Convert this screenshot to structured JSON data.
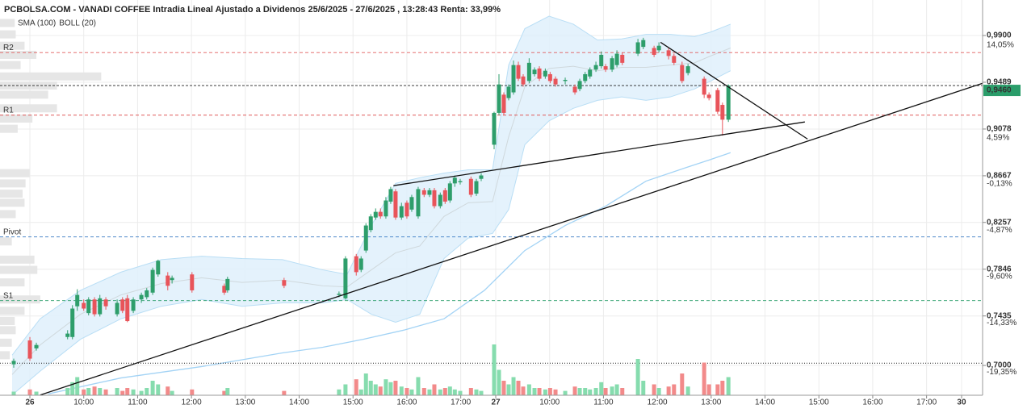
{
  "chart_data": {
    "type": "candlestick",
    "title": "PCBOLSA.COM - VANADI COFFEE Intradia Lineal Ajustado a Dividenos 25/6/2025 - 27/6/2025 , 13:28:43 Renta: 33,99%",
    "legend": [
      {
        "name": "SMA (100)",
        "color": "#8ecbf0"
      },
      {
        "name": "BOLL (20)",
        "color": "#bbbbbb"
      }
    ],
    "up_color": "#2e9e6b",
    "down_color": "#e8545a",
    "volume_up_color": "#86dcae",
    "volume_down_color": "#f28a8a",
    "x": [
      -0.3,
      0,
      0.12,
      0.7,
      0.79,
      0.88,
      1.0,
      1.09,
      1.2,
      1.3,
      1.41,
      1.62,
      1.72,
      1.81,
      1.92,
      2.07,
      2.17,
      2.28,
      2.38,
      2.56,
      2.64,
      3.01,
      3.61,
      3.67,
      4.72,
      5.74,
      5.86,
      6.06,
      6.15,
      6.24,
      6.33,
      6.42,
      6.51,
      6.61,
      6.7,
      6.79,
      6.9,
      7.0,
      7.09,
      7.21,
      7.32,
      7.42,
      7.51,
      7.62,
      7.71,
      7.8,
      7.89,
      7.99,
      8.19,
      8.29,
      8.38,
      8.62,
      8.71,
      8.8,
      8.89,
      8.98,
      9.07,
      9.16,
      9.27,
      9.37,
      9.46,
      9.57,
      9.66,
      9.76,
      9.94,
      10.12,
      10.21,
      10.31,
      10.4,
      10.51,
      10.61,
      10.69,
      10.81,
      10.9,
      11.0,
      11.29,
      11.39,
      11.59,
      11.68,
      11.86,
      11.96,
      12.11,
      12.22,
      12.52,
      12.61,
      12.77,
      12.86,
      12.97
    ],
    "open": [
      0.701,
      0.722,
      0.715,
      0.725,
      0.725,
      0.752,
      0.755,
      0.746,
      0.758,
      0.745,
      0.758,
      0.745,
      0.758,
      0.759,
      0.748,
      0.758,
      0.76,
      0.764,
      0.78,
      0.779,
      0.775,
      0.78,
      0.77,
      0.766,
      0.775,
      0.762,
      0.759,
      0.796,
      0.784,
      0.801,
      0.819,
      0.83,
      0.835,
      0.831,
      0.844,
      0.853,
      0.83,
      0.843,
      0.837,
      0.831,
      0.854,
      0.85,
      0.854,
      0.84,
      0.854,
      0.845,
      0.86,
      0.861,
      0.864,
      0.851,
      0.864,
      0.894,
      0.922,
      0.938,
      0.935,
      0.94,
      0.964,
      0.954,
      0.95,
      0.956,
      0.961,
      0.954,
      0.956,
      0.952,
      0.95,
      0.945,
      0.943,
      0.95,
      0.954,
      0.96,
      0.963,
      0.963,
      0.96,
      0.964,
      0.973,
      0.974,
      0.98,
      0.979,
      0.977,
      0.977,
      0.972,
      0.964,
      0.957,
      0.952,
      0.938,
      0.942,
      0.929,
      0.916
    ],
    "high": [
      0.706,
      0.725,
      0.72,
      0.731,
      0.753,
      0.767,
      0.758,
      0.76,
      0.76,
      0.762,
      0.76,
      0.758,
      0.76,
      0.762,
      0.76,
      0.764,
      0.768,
      0.786,
      0.793,
      0.782,
      0.779,
      0.782,
      0.772,
      0.778,
      0.777,
      0.765,
      0.796,
      0.798,
      0.796,
      0.825,
      0.833,
      0.838,
      0.838,
      0.848,
      0.857,
      0.855,
      0.843,
      0.845,
      0.85,
      0.857,
      0.856,
      0.856,
      0.856,
      0.852,
      0.856,
      0.862,
      0.867,
      0.864,
      0.866,
      0.864,
      0.869,
      0.923,
      0.956,
      0.94,
      0.947,
      0.968,
      0.967,
      0.956,
      0.97,
      0.962,
      0.963,
      0.961,
      0.958,
      0.954,
      0.953,
      0.947,
      0.952,
      0.958,
      0.962,
      0.967,
      0.976,
      0.965,
      0.972,
      0.977,
      0.975,
      0.987,
      0.988,
      0.981,
      0.984,
      0.979,
      0.974,
      0.967,
      0.965,
      0.954,
      0.94,
      0.944,
      0.931,
      0.947
    ],
    "low": [
      0.698,
      0.704,
      0.713,
      0.723,
      0.723,
      0.748,
      0.748,
      0.744,
      0.743,
      0.743,
      0.749,
      0.743,
      0.746,
      0.738,
      0.746,
      0.755,
      0.758,
      0.762,
      0.778,
      0.766,
      0.772,
      0.764,
      0.762,
      0.764,
      0.768,
      0.76,
      0.758,
      0.779,
      0.782,
      0.799,
      0.817,
      0.828,
      0.829,
      0.829,
      0.842,
      0.828,
      0.828,
      0.829,
      0.835,
      0.829,
      0.848,
      0.848,
      0.838,
      0.838,
      0.842,
      0.843,
      0.857,
      0.859,
      0.848,
      0.849,
      0.862,
      0.89,
      0.92,
      0.92,
      0.933,
      0.938,
      0.95,
      0.945,
      0.948,
      0.954,
      0.95,
      0.952,
      0.948,
      0.945,
      0.947,
      0.938,
      0.941,
      0.948,
      0.952,
      0.958,
      0.961,
      0.958,
      0.958,
      0.962,
      0.964,
      0.972,
      0.978,
      0.971,
      0.975,
      0.969,
      0.964,
      0.948,
      0.955,
      0.935,
      0.933,
      0.921,
      0.902,
      0.914
    ],
    "close": [
      0.704,
      0.706,
      0.718,
      0.728,
      0.75,
      0.762,
      0.75,
      0.758,
      0.745,
      0.759,
      0.752,
      0.755,
      0.748,
      0.739,
      0.758,
      0.762,
      0.766,
      0.784,
      0.792,
      0.77,
      0.777,
      0.766,
      0.764,
      0.776,
      0.77,
      0.763,
      0.794,
      0.782,
      0.794,
      0.823,
      0.831,
      0.835,
      0.831,
      0.845,
      0.855,
      0.83,
      0.84,
      0.831,
      0.848,
      0.855,
      0.85,
      0.854,
      0.84,
      0.85,
      0.844,
      0.86,
      0.865,
      0.862,
      0.85,
      0.862,
      0.867,
      0.922,
      0.947,
      0.922,
      0.945,
      0.964,
      0.952,
      0.947,
      0.966,
      0.96,
      0.952,
      0.959,
      0.95,
      0.947,
      0.951,
      0.94,
      0.95,
      0.956,
      0.96,
      0.964,
      0.973,
      0.96,
      0.97,
      0.974,
      0.966,
      0.984,
      0.986,
      0.973,
      0.981,
      0.972,
      0.966,
      0.95,
      0.963,
      0.938,
      0.935,
      0.923,
      0.916,
      0.946
    ],
    "volume": [
      5,
      8,
      5,
      10,
      18,
      25,
      8,
      10,
      12,
      10,
      8,
      10,
      6,
      10,
      8,
      6,
      10,
      20,
      15,
      12,
      6,
      8,
      6,
      10,
      6,
      8,
      15,
      22,
      8,
      30,
      20,
      15,
      12,
      22,
      18,
      20,
      12,
      10,
      8,
      25,
      10,
      8,
      15,
      8,
      10,
      12,
      8,
      6,
      10,
      8,
      6,
      70,
      35,
      20,
      15,
      25,
      20,
      12,
      15,
      10,
      10,
      8,
      10,
      8,
      6,
      12,
      10,
      10,
      8,
      10,
      18,
      10,
      12,
      15,
      10,
      50,
      20,
      15,
      10,
      12,
      15,
      30,
      12,
      45,
      15,
      15,
      20,
      25
    ],
    "vlim": [
      0,
      100
    ],
    "xlim": [
      -0.555,
      17.69
    ],
    "ylim": [
      0.6738,
      1.0212
    ],
    "y2lim": [
      -21.71,
      18.66
    ],
    "grid": true,
    "xticks": [
      {
        "value": 0,
        "label": "26"
      },
      {
        "value": 1,
        "label": "10:00"
      },
      {
        "value": 2,
        "label": "11:00"
      },
      {
        "value": 3,
        "label": "12:00"
      },
      {
        "value": 4,
        "label": "13:00"
      },
      {
        "value": 5,
        "label": "14:00"
      },
      {
        "value": 6,
        "label": "15:00"
      },
      {
        "value": 7,
        "label": "16:00"
      },
      {
        "value": 8,
        "label": "17:00"
      },
      {
        "value": 8.65,
        "label": "27"
      },
      {
        "value": 9.65,
        "label": "10:00"
      },
      {
        "value": 10.65,
        "label": "11:00"
      },
      {
        "value": 11.65,
        "label": "12:00"
      },
      {
        "value": 12.65,
        "label": "13:00"
      },
      {
        "value": 13.65,
        "label": "14:00"
      },
      {
        "value": 14.65,
        "label": "15:00"
      },
      {
        "value": 15.65,
        "label": "16:00"
      },
      {
        "value": 16.65,
        "label": "17:00"
      },
      {
        "value": 17.3,
        "label": "30"
      }
    ],
    "yticks": [
      {
        "value": 0.99,
        "label": "0,9900"
      },
      {
        "value": 0.9489,
        "label": "0,9489"
      },
      {
        "value": 0.9078,
        "label": "0,9078"
      },
      {
        "value": 0.8667,
        "label": "0,8667"
      },
      {
        "value": 0.8257,
        "label": "0,8257"
      },
      {
        "value": 0.7846,
        "label": "0,7846"
      },
      {
        "value": 0.7435,
        "label": "0,7435"
      },
      {
        "value": 0.7,
        "label": "0,7000"
      }
    ],
    "y2ticks": [
      {
        "value": 14.05,
        "label": "14,05%"
      },
      {
        "value": 4.59,
        "label": "4,59%"
      },
      {
        "value": -0.13,
        "label": "-0,13%"
      },
      {
        "value": -4.87,
        "label": "-4,87%"
      },
      {
        "value": -9.6,
        "label": "-9,60%"
      },
      {
        "value": -14.33,
        "label": "-14,33%"
      },
      {
        "value": -19.35,
        "label": "-19,35%"
      }
    ],
    "bollinger": {
      "x": [
        -0.33,
        0.19,
        0.94,
        1.69,
        2.44,
        3.19,
        3.94,
        4.69,
        5.44,
        5.89,
        6.34,
        6.79,
        7.24,
        7.69,
        8.14,
        8.59,
        8.89,
        9.19,
        9.64,
        10.09,
        10.54,
        10.99,
        11.44,
        11.89,
        12.34,
        12.64,
        13.01
      ],
      "upper": [
        0.709,
        0.741,
        0.766,
        0.782,
        0.793,
        0.796,
        0.794,
        0.793,
        0.784,
        0.78,
        0.823,
        0.86,
        0.865,
        0.869,
        0.872,
        0.872,
        0.964,
        0.996,
        1.007,
        1.0,
        0.986,
        0.987,
        0.991,
        0.991,
        0.989,
        0.993,
        1.0
      ],
      "middle": [
        0.692,
        0.718,
        0.745,
        0.762,
        0.772,
        0.777,
        0.773,
        0.775,
        0.77,
        0.769,
        0.784,
        0.799,
        0.805,
        0.831,
        0.843,
        0.844,
        0.901,
        0.945,
        0.961,
        0.963,
        0.959,
        0.962,
        0.962,
        0.964,
        0.966,
        0.972,
        0.979
      ],
      "lower": [
        0.674,
        0.695,
        0.723,
        0.741,
        0.752,
        0.758,
        0.752,
        0.755,
        0.755,
        0.758,
        0.745,
        0.738,
        0.745,
        0.794,
        0.812,
        0.816,
        0.837,
        0.894,
        0.915,
        0.926,
        0.933,
        0.936,
        0.933,
        0.936,
        0.943,
        0.95,
        0.959
      ],
      "color": "#b9def5",
      "fill": "#dff0fb",
      "middle_color": "#cfd8dc"
    },
    "sma": {
      "x": [
        0.34,
        1.69,
        3.19,
        3.94,
        4.69,
        5.44,
        6.19,
        6.94,
        7.69,
        8.44,
        9.19,
        9.94,
        10.69,
        11.44,
        12.19,
        12.64,
        13.01
      ],
      "values": [
        0.675,
        0.689,
        0.699,
        0.705,
        0.711,
        0.716,
        0.723,
        0.731,
        0.741,
        0.766,
        0.801,
        0.823,
        0.84,
        0.862,
        0.874,
        0.881,
        0.887
      ],
      "color": "#a3d3f5"
    },
    "levels": [
      {
        "name": "R2",
        "value": 0.975,
        "color": "#e05a5a"
      },
      {
        "name": "R1",
        "value": 0.92,
        "color": "#e05a5a"
      },
      {
        "name": "Pivot",
        "value": 0.813,
        "color": "#3a7cc4"
      },
      {
        "name": "S1",
        "value": 0.757,
        "color": "#2a9d6a"
      }
    ],
    "hlines": [
      {
        "value": 0.702,
        "color": "#222222"
      }
    ],
    "last_price": {
      "value": 0.946,
      "label": "0,9460",
      "color": "#2a9d6a"
    },
    "trendlines": [
      {
        "x": [
          0.19,
          17.69
        ],
        "y": [
          0.674,
          0.948
        ]
      },
      {
        "x": [
          6.75,
          14.39
        ],
        "y": [
          0.858,
          0.914
        ]
      },
      {
        "x": [
          11.71,
          14.44
        ],
        "y": [
          0.984,
          0.899
        ]
      }
    ],
    "volume_profile": {
      "levels": [
        1.001,
        0.991,
        0.981,
        0.973,
        0.964,
        0.954,
        0.946,
        0.938,
        0.926,
        0.917,
        0.908,
        0.869,
        0.86,
        0.851,
        0.843,
        0.833,
        0.809,
        0.793,
        0.784,
        0.773,
        0.758,
        0.748,
        0.739,
        0.731,
        0.72,
        0.709
      ],
      "values": [
        15,
        16,
        25,
        37,
        21,
        103,
        58,
        49,
        58,
        33,
        18,
        30,
        26,
        23,
        25,
        16,
        12,
        35,
        38,
        25,
        41,
        25,
        15,
        16,
        12,
        10
      ],
      "vlim": [
        0,
        1000
      ],
      "color": "#e6e6e6"
    }
  }
}
